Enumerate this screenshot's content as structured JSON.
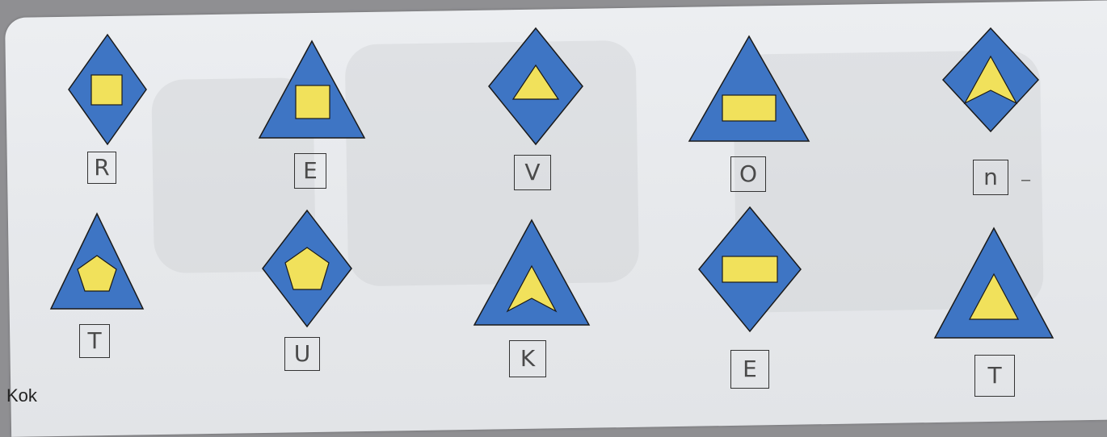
{
  "puzzle": {
    "row1": [
      {
        "outer": "diamond",
        "inner": "square",
        "letter": "R"
      },
      {
        "outer": "triangle",
        "inner": "square",
        "letter": "E"
      },
      {
        "outer": "diamond",
        "inner": "triangle",
        "letter": "V"
      },
      {
        "outer": "triangle",
        "inner": "rectangle",
        "letter": "O"
      },
      {
        "outer": "diamond",
        "inner": "arrow",
        "letter": "n"
      }
    ],
    "row2": [
      {
        "outer": "triangle",
        "inner": "pentagon",
        "letter": "T"
      },
      {
        "outer": "diamond",
        "inner": "pentagon",
        "letter": "U"
      },
      {
        "outer": "triangle",
        "inner": "arrow",
        "letter": "K"
      },
      {
        "outer": "diamond",
        "inner": "rectangle",
        "letter": "E"
      },
      {
        "outer": "triangle",
        "inner": "triangle",
        "letter": "T"
      }
    ]
  },
  "bottom_text": "Kok",
  "colors": {
    "outer_fill": "#3e75c4",
    "inner_fill": "#f1e15b",
    "outline": "#1a1a1a"
  }
}
